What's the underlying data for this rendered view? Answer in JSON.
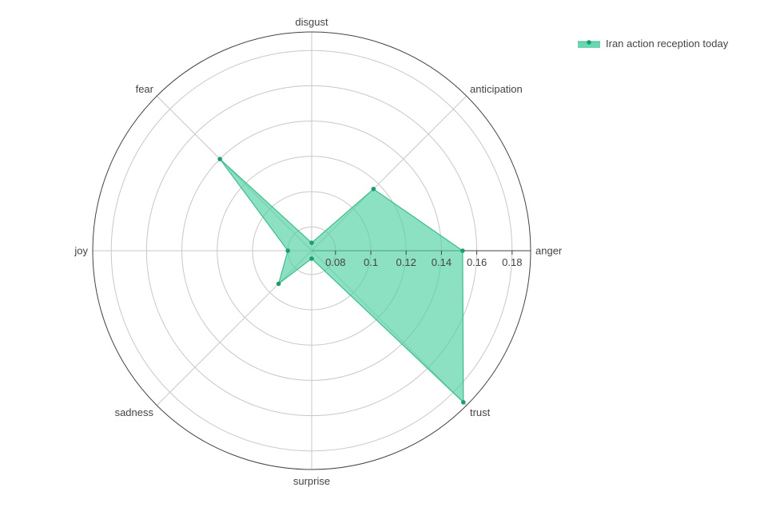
{
  "chart_data": {
    "type": "radar",
    "categories": [
      "anger",
      "anticipation",
      "disgust",
      "fear",
      "joy",
      "sadness",
      "surprise",
      "trust"
    ],
    "series": [
      {
        "name": "Iran action reception today",
        "values": [
          0.152,
          0.116,
          0.071,
          0.14,
          0.08,
          0.093,
          0.071,
          0.188
        ]
      }
    ],
    "radial_range": [
      0.0665,
      0.1905
    ],
    "radial_ticks": [
      0.08,
      0.1,
      0.12,
      0.14,
      0.16,
      0.18
    ],
    "radial_tick_labels": [
      "0.08",
      "0.1",
      "0.12",
      "0.14",
      "0.16",
      "0.18"
    ],
    "grid": true,
    "legend": "top-right",
    "colors": {
      "fill": "#4fd1a3",
      "line": "#3dbd8e",
      "marker": "#1a9e6e",
      "grid": "#c8c8c8",
      "outer_ring": "#444444",
      "text": "#444444"
    }
  }
}
